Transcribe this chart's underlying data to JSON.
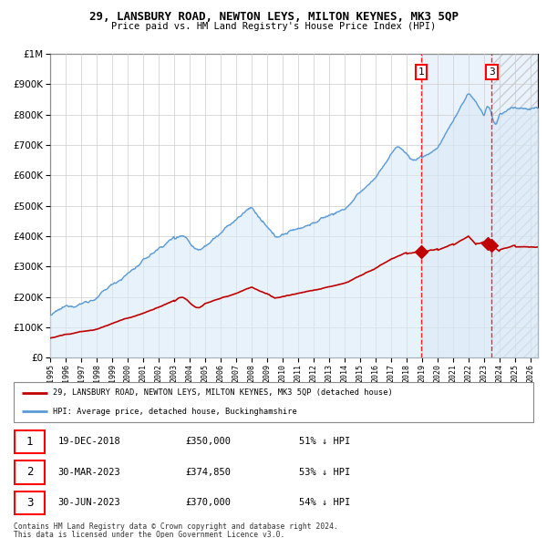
{
  "title": "29, LANSBURY ROAD, NEWTON LEYS, MILTON KEYNES, MK3 5QP",
  "subtitle": "Price paid vs. HM Land Registry's House Price Index (HPI)",
  "ytick_vals": [
    0,
    100000,
    200000,
    300000,
    400000,
    500000,
    600000,
    700000,
    800000,
    900000,
    1000000
  ],
  "ylim": [
    0,
    1000000
  ],
  "xlim_start": 1995.0,
  "xlim_end": 2026.5,
  "hpi_color": "#5b9bd5",
  "hpi_fill_color": "#daeaf7",
  "price_color": "#c00000",
  "background_color": "#ffffff",
  "grid_color": "#cccccc",
  "sale1_x": 2018.96,
  "sale1_y": 350000,
  "sale2_x": 2023.25,
  "sale2_y": 374850,
  "sale3_x": 2023.5,
  "sale3_y": 370000,
  "shade_region_start": 2018.96,
  "shade_region_end": 2023.5,
  "hatch_region_start": 2023.5,
  "hatch_region_end": 2026.5,
  "legend_line1": "29, LANSBURY ROAD, NEWTON LEYS, MILTON KEYNES, MK3 5QP (detached house)",
  "legend_line2": "HPI: Average price, detached house, Buckinghamshire",
  "table_rows": [
    {
      "num": "1",
      "date": "19-DEC-2018",
      "price": "£350,000",
      "hpi": "51% ↓ HPI"
    },
    {
      "num": "2",
      "date": "30-MAR-2023",
      "price": "£374,850",
      "hpi": "53% ↓ HPI"
    },
    {
      "num": "3",
      "date": "30-JUN-2023",
      "price": "£370,000",
      "hpi": "54% ↓ HPI"
    }
  ],
  "footer1": "Contains HM Land Registry data © Crown copyright and database right 2024.",
  "footer2": "This data is licensed under the Open Government Licence v3.0."
}
